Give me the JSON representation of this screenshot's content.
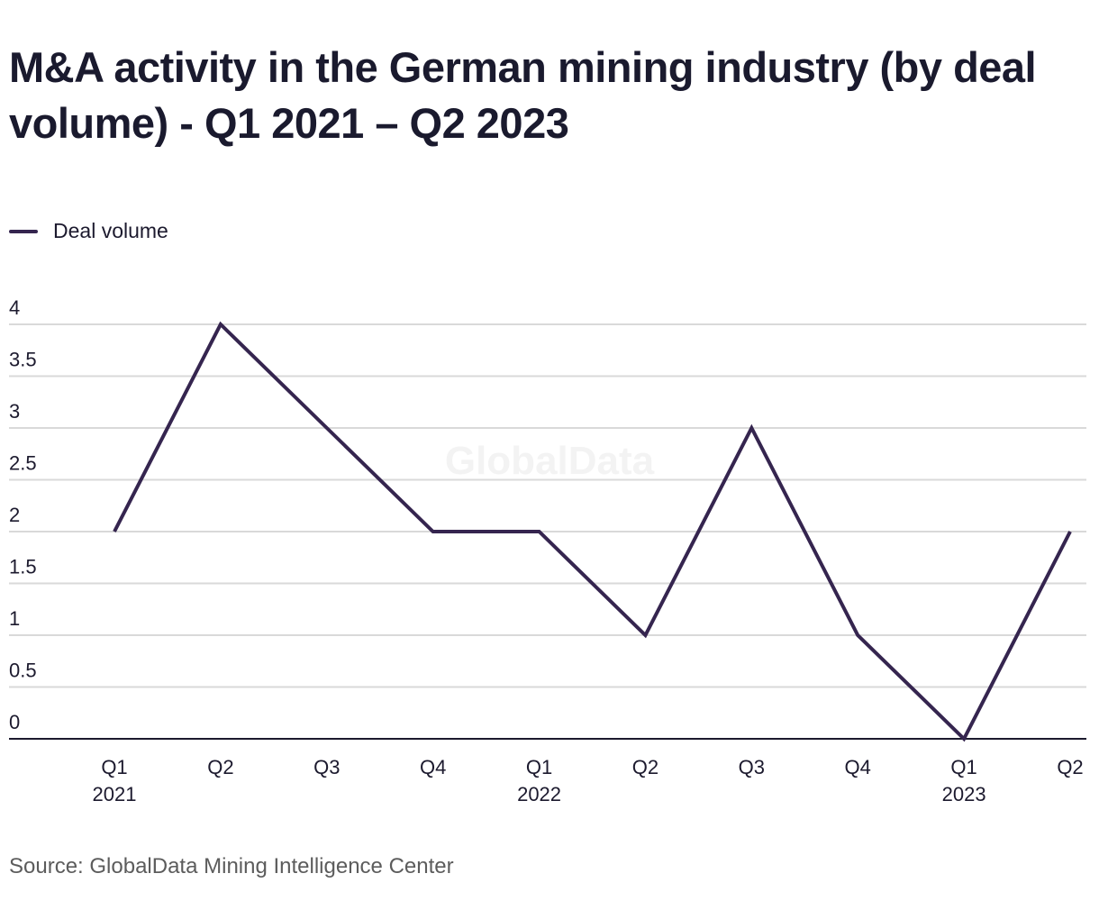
{
  "chart_data": {
    "type": "line",
    "title": "M&A activity in the German mining industry (by deal volume) - Q1 2021 – Q2 2023",
    "xlabel": "",
    "ylabel": "",
    "categories": [
      {
        "quarter": "Q1",
        "year": "2021"
      },
      {
        "quarter": "Q2",
        "year": ""
      },
      {
        "quarter": "Q3",
        "year": ""
      },
      {
        "quarter": "Q4",
        "year": ""
      },
      {
        "quarter": "Q1",
        "year": "2022"
      },
      {
        "quarter": "Q2",
        "year": ""
      },
      {
        "quarter": "Q3",
        "year": ""
      },
      {
        "quarter": "Q4",
        "year": ""
      },
      {
        "quarter": "Q1",
        "year": "2023"
      },
      {
        "quarter": "Q2",
        "year": ""
      }
    ],
    "series": [
      {
        "name": "Deal volume",
        "color": "#35254f",
        "values": [
          2,
          4,
          3,
          2,
          2,
          1,
          3,
          1,
          0,
          2
        ]
      }
    ],
    "ylim": [
      0,
      4
    ],
    "yticks": [
      0,
      0.5,
      1,
      1.5,
      2,
      2.5,
      3,
      3.5,
      4
    ],
    "ytick_labels": [
      "0",
      "0.5",
      "1",
      "1.5",
      "2",
      "2.5",
      "3",
      "3.5",
      "4"
    ],
    "grid": true,
    "legend": "top-left",
    "watermark": "GlobalData",
    "source": "Source: GlobalData Mining Intelligence Center"
  },
  "colors": {
    "line": "#35254f",
    "grid": "#d9d9d9",
    "axis": "#1c1a2e",
    "text": "#1c1a2e",
    "source_text": "#5c5c5c"
  }
}
